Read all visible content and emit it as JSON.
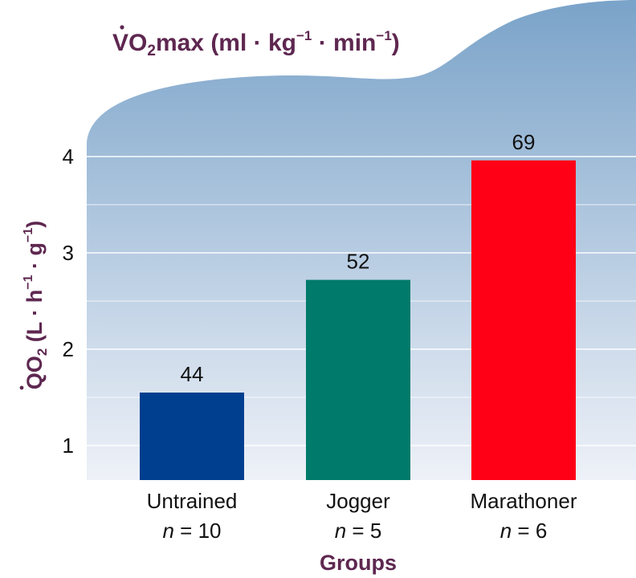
{
  "chart_data": {
    "type": "bar",
    "title_parts": {
      "base": "VO",
      "sub": "2",
      "suffix": "max (ml · kg",
      "sup1": "−1",
      "mid": " · min",
      "sup2": "−1",
      "end": ")"
    },
    "ylabel_parts": {
      "base": "QO",
      "sub": "2",
      "suffix": " (L · h",
      "sup1": "−1",
      "mid": " · g",
      "sup2": "−1",
      "end": ")"
    },
    "xlabel": "Groups",
    "categories": [
      "Untrained",
      "Jogger",
      "Marathoner"
    ],
    "n_prefix": "n",
    "n_values": [
      "= 10",
      "= 5",
      "= 6"
    ],
    "values": [
      1.55,
      2.72,
      3.96
    ],
    "value_labels": [
      "44",
      "52",
      "69"
    ],
    "bar_colors": [
      "#003f8f",
      "#007a6a",
      "#ff0016"
    ],
    "yticks": [
      1,
      2,
      3,
      4
    ],
    "ylim": [
      0.6,
      4.6
    ],
    "grid": true,
    "background_gradient": [
      "#7aa3c9",
      "#eef1f8"
    ],
    "title_color": "#5e2750"
  }
}
